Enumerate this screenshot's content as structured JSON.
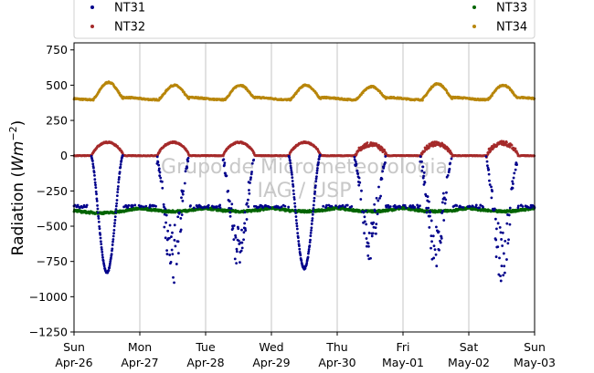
{
  "chart_data": {
    "type": "scatter",
    "title": "",
    "xlabel": "",
    "ylabel": "Radiation (",
    "ylabel_unit": "Wm",
    "ylabel_exp": "−2",
    "ylabel_close": ")",
    "ylim": [
      -1250,
      800
    ],
    "xlim": [
      "2020-04-26",
      "2020-05-03"
    ],
    "grid": "vertical",
    "legend_placement": "top",
    "yticks": [
      {
        "value": 750,
        "label": "750"
      },
      {
        "value": 500,
        "label": "500"
      },
      {
        "value": 250,
        "label": "250"
      },
      {
        "value": 0,
        "label": "0"
      },
      {
        "value": -250,
        "label": "−250"
      },
      {
        "value": -500,
        "label": "−500"
      },
      {
        "value": -750,
        "label": "−750"
      },
      {
        "value": -1000,
        "label": "−1000"
      },
      {
        "value": -1250,
        "label": "−1250"
      }
    ],
    "xticks": [
      {
        "date": "2020-04-26",
        "day": "Sun",
        "label": "Apr-26"
      },
      {
        "date": "2020-04-27",
        "day": "Mon",
        "label": "Apr-27"
      },
      {
        "date": "2020-04-28",
        "day": "Tue",
        "label": "Apr-28"
      },
      {
        "date": "2020-04-29",
        "day": "Wed",
        "label": "Apr-29"
      },
      {
        "date": "2020-04-30",
        "day": "Thu",
        "label": "Apr-30"
      },
      {
        "date": "2020-05-01",
        "day": "Fri",
        "label": "May-01"
      },
      {
        "date": "2020-05-02",
        "day": "Sat",
        "label": "May-02"
      },
      {
        "date": "2020-05-03",
        "day": "Sun",
        "label": "May-03"
      }
    ],
    "watermark": [
      "Grupo de Micrometeorologia",
      "IAG / USP"
    ],
    "series": [
      {
        "name": "NT31",
        "color": "#00008b",
        "daily_min": [
          -830,
          -860,
          -820,
          -800,
          -700,
          -760,
          -850
        ],
        "night": -350
      },
      {
        "name": "NT32",
        "color": "#a52a2a",
        "daily_max": [
          95,
          95,
          95,
          95,
          80,
          85,
          90
        ],
        "night": 0
      },
      {
        "name": "NT33",
        "color": "#006400",
        "daily_min": [
          -395,
          -400,
          -390,
          -375,
          -390,
          -400,
          -390
        ],
        "night": -355
      },
      {
        "name": "NT34",
        "color": "#b8860b",
        "daily_max": [
          520,
          500,
          500,
          500,
          490,
          510,
          500
        ],
        "night": 405
      }
    ]
  }
}
